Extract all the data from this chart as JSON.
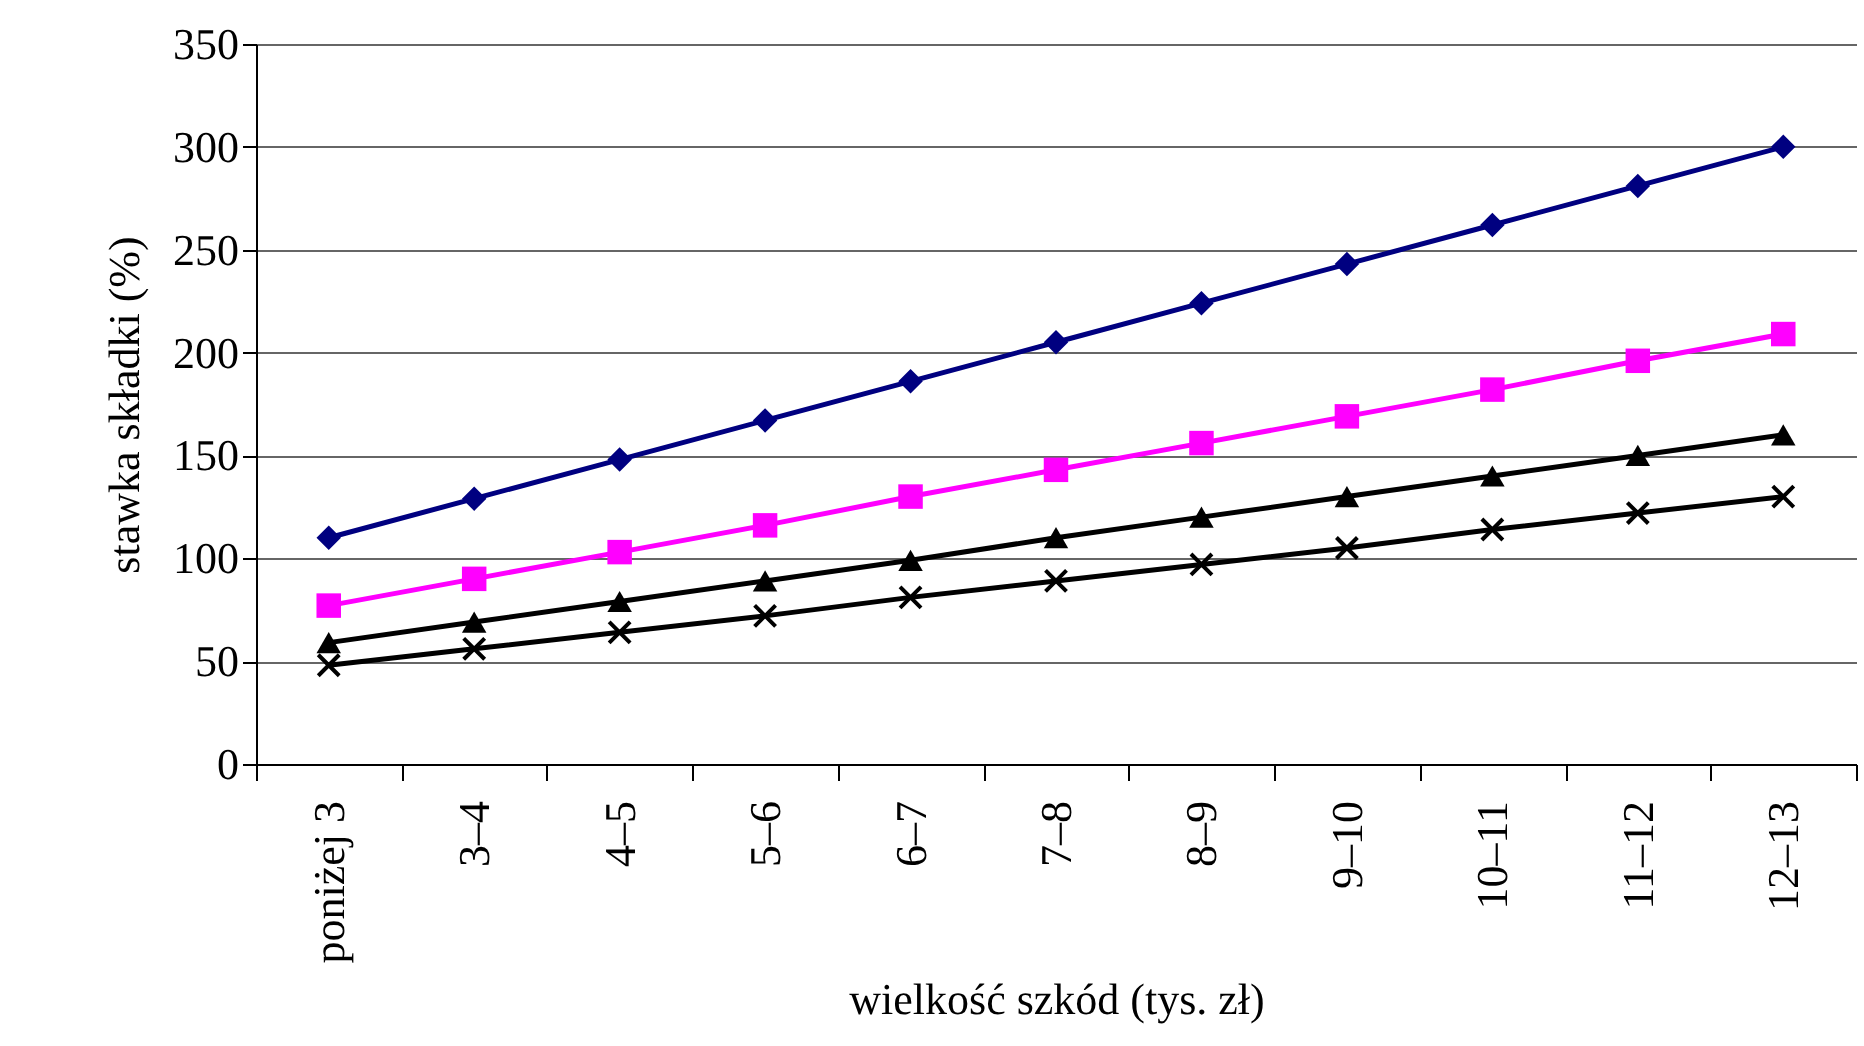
{
  "chart_data": {
    "type": "line",
    "xlabel": "wielkość szkód (tys. zł)",
    "ylabel": "stawka składki (%)",
    "categories": [
      "poniżej 3",
      "3–4",
      "4–5",
      "5–6",
      "6–7",
      "7–8",
      "8–9",
      "9–10",
      "10–11",
      "11–12",
      "12–13"
    ],
    "series": [
      {
        "color": "#000080",
        "marker": "diamond",
        "values": [
          110,
          129,
          148,
          167,
          186,
          205,
          224,
          243,
          262,
          281,
          300
        ]
      },
      {
        "color": "#ff00ff",
        "marker": "square",
        "values": [
          77,
          90,
          103,
          116,
          130,
          143,
          156,
          169,
          182,
          196,
          209
        ]
      },
      {
        "color": "#000000",
        "marker": "triangle",
        "values": [
          59,
          69,
          79,
          89,
          99,
          110,
          120,
          130,
          140,
          150,
          160
        ]
      },
      {
        "color": "#000000",
        "marker": "cross",
        "values": [
          48,
          56,
          64,
          72,
          81,
          89,
          97,
          105,
          114,
          122,
          130
        ]
      }
    ],
    "ylim": [
      0,
      350
    ],
    "yticks": [
      0,
      50,
      100,
      150,
      200,
      250,
      300,
      350
    ],
    "grid": "y",
    "line_style": "solid"
  }
}
